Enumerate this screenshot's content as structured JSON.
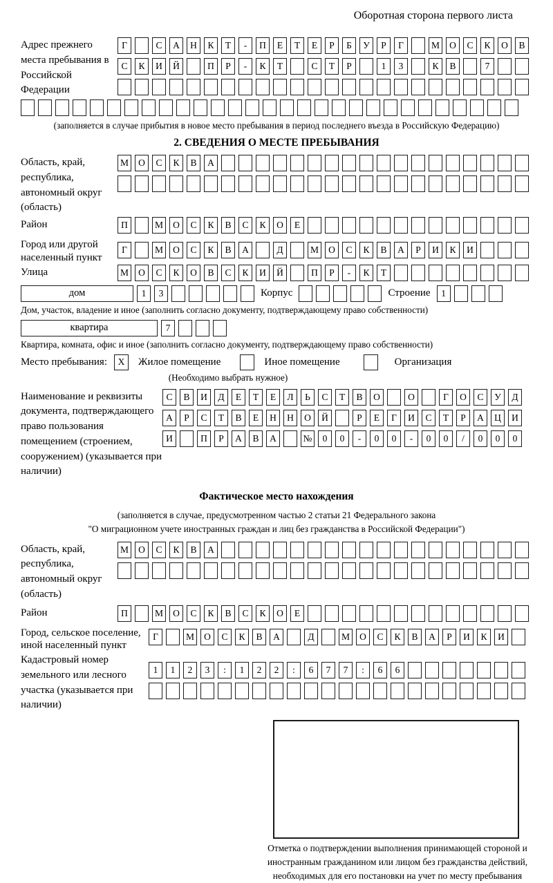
{
  "page_header": "Оборотная сторона первого листа",
  "prev_address": {
    "label": "Адрес прежнего места пребывания в Российской Федерации",
    "row1": "Г САНКТ-ПЕТЕРБУРГ МОСКОВ",
    "row2": "СКИЙ ПР-КТ СТР 13 КВ 7",
    "row3": "",
    "full_row": "",
    "caption": "(заполняется в случае прибытия в новое место пребывания в период последнего въезда в Российскую Федерацию)"
  },
  "section2": {
    "title": "2. СВЕДЕНИЯ О МЕСТЕ ПРЕБЫВАНИЯ",
    "region": {
      "label": "Область, край, республика, автономный округ (область)",
      "row1": "МОСКВА",
      "row2": ""
    },
    "district": {
      "label": "Район",
      "row": "П МОСКВСКОЕ"
    },
    "city": {
      "label": "Город или другой населенный пункт",
      "row": "Г МОСКВА Д МОСКВАРИКИ"
    },
    "street": {
      "label": "Улица",
      "row": "МОСКОВСКИЙ ПР-КТ"
    },
    "house": {
      "box_label": "дом",
      "cells": "13",
      "korpus_label": "Корпус",
      "korpus_cells": "",
      "stroenie_label": "Строение",
      "stroenie_cells": "1",
      "caption": "Дом, участок, владение и иное (заполнить согласно документу, подтверждающему право собственности)"
    },
    "apartment": {
      "box_label": "квартира",
      "cells": "7",
      "caption": "Квартира, комната, офис и иное (заполнить согласно документу, подтверждающему право собственности)"
    },
    "stay_type": {
      "label": "Место пребывания:",
      "option1": {
        "checked": "X",
        "label": "Жилое помещение"
      },
      "option2": {
        "checked": "",
        "label": "Иное помещение"
      },
      "option3": {
        "checked": "",
        "label": "Организация"
      },
      "caption": "(Необходимо выбрать нужное)"
    },
    "document": {
      "label": "Наименование и реквизиты документа, подтверждающего право пользования помещением (строением, сооружением) (указывается при наличии)",
      "row1": "СВИДЕТЕЛЬСТВО О ГОСУД",
      "row2": "АРСТВЕННОЙ РЕГИСТРАЦИ",
      "row3": "И ПРАВА №00-00-00/000"
    }
  },
  "actual_location": {
    "title": "Фактическое место нахождения",
    "caption_line1": "(заполняется в случае, предусмотренном частью 2 статьи 21 Федерального закона",
    "caption_line2": "\"О миграционном учете иностранных граждан и лиц без гражданства в Российской Федерации\")",
    "region": {
      "label": "Область, край, республика, автономный округ (область)",
      "row1": "МОСКВА",
      "row2": ""
    },
    "district": {
      "label": "Район",
      "row": "П МОСКВСКОЕ"
    },
    "city": {
      "label": "Город, сельское поселение, иной населенный пункт",
      "row": "Г МОСКВА Д МОСКВАРИКИ"
    },
    "cadastral": {
      "label": "Кадастровый номер земельного или лесного участка (указывается при наличии)",
      "row1": "1123:122:677:66",
      "row2": ""
    },
    "stamp_caption": "Отметка о подтверждении выполнения принимающей стороной и иностранным гражданином или лицом без гражданства действий, необходимых для его постановки на учет по месту пребывания"
  }
}
